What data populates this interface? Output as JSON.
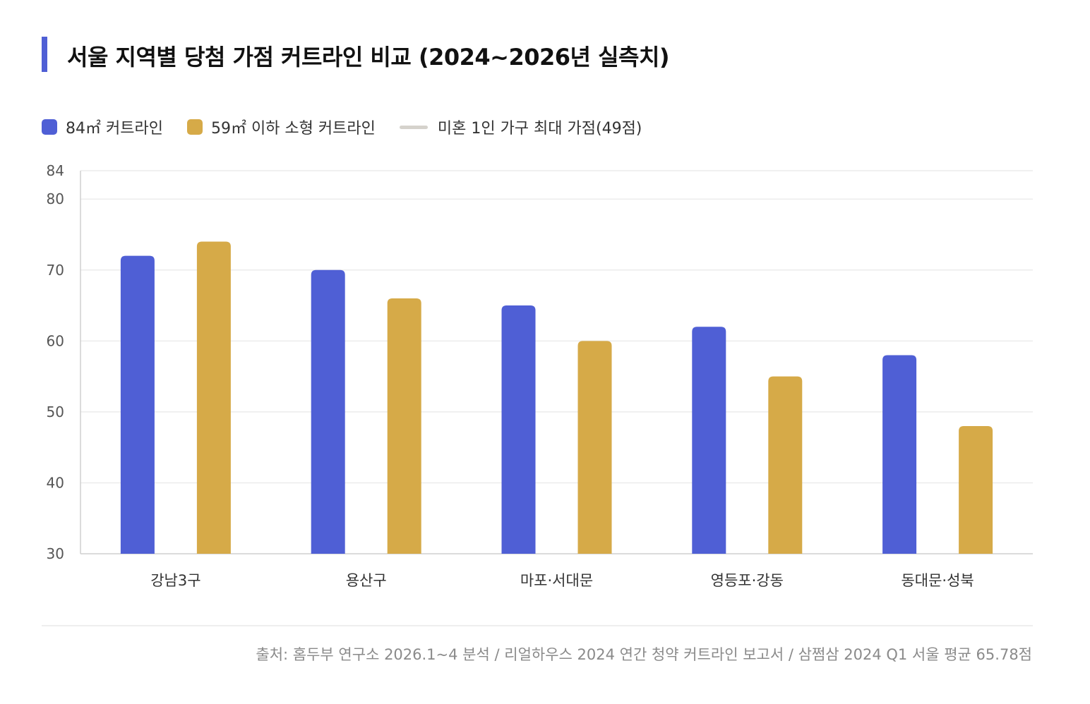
{
  "title": "서울 지역별 당첨 가점 커트라인 비교 (2024~2026년 실측치)",
  "legend": {
    "items": [
      {
        "label": "84㎡ 커트라인",
        "color": "#4f5fd5",
        "kind": "box"
      },
      {
        "label": "59㎡ 이하 소형 커트라인",
        "color": "#d6aa48",
        "kind": "box"
      },
      {
        "label": "미혼 1인 가구 최대 가점(49점)",
        "color": "#d5d2cc",
        "kind": "line"
      }
    ]
  },
  "chart_data": {
    "type": "bar",
    "title": "서울 지역별 당첨 가점 커트라인 비교 (2024~2026년 실측치)",
    "categories": [
      "강남3구",
      "용산구",
      "마포·서대문",
      "영등포·강동",
      "동대문·성북"
    ],
    "series": [
      {
        "name": "84㎡ 커트라인",
        "color": "#4f5fd5",
        "values": [
          72,
          70,
          65,
          62,
          58
        ]
      },
      {
        "name": "59㎡ 이하 소형 커트라인",
        "color": "#d6aa48",
        "values": [
          74,
          66,
          60,
          55,
          48
        ]
      }
    ],
    "reference_line": {
      "name": "미혼 1인 가구 최대 가점(49점)",
      "value": 49,
      "color": "#d5d2cc"
    },
    "ylim": [
      30,
      84
    ],
    "yticks": [
      30,
      40,
      50,
      60,
      70,
      80,
      84
    ],
    "grid": true,
    "legend_position": "top-left",
    "xlabel": "",
    "ylabel": ""
  },
  "source": "출처: 홈두부 연구소 2026.1~4 분석 / 리얼하우스 2024 연간 청약 커트라인 보고서 / 삼쩜삼 2024 Q1 서울 평균 65.78점"
}
